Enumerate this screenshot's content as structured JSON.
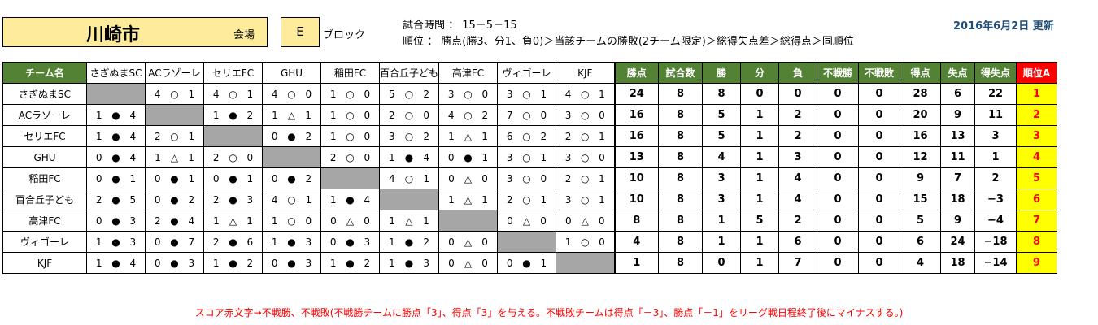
{
  "header": {
    "city": "川崎市",
    "venue_label": "会場",
    "block": "E",
    "block_label": "ブロック",
    "match_time": "試合時間 ： 15－5－15",
    "ranking_rule": "順位 ： 勝点(勝3、分1、負0)＞当該チームの勝敗(2チーム限定)＞総得失点差＞総得点＞同順位",
    "updated": "2016年6月2日 更新"
  },
  "table": {
    "team_col_header": "チーム名",
    "stat_headers": [
      "勝点",
      "試合数",
      "勝",
      "分",
      "負",
      "不戦勝",
      "不戦敗",
      "得点",
      "失点",
      "得失点",
      "順位A"
    ],
    "teams": [
      "さぎぬまSC",
      "ACラゾーレ",
      "セリエFC",
      "GHU",
      "稲田FC",
      "百合丘子ども",
      "高津FC",
      "ヴィゴーレ",
      "KJF"
    ],
    "rows": [
      {
        "scores": [
          null,
          [
            "4",
            "○",
            "1"
          ],
          [
            "4",
            "○",
            "1"
          ],
          [
            "4",
            "○",
            "0"
          ],
          [
            "1",
            "○",
            "0"
          ],
          [
            "5",
            "○",
            "2"
          ],
          [
            "3",
            "○",
            "0"
          ],
          [
            "3",
            "○",
            "1"
          ],
          [
            "4",
            "○",
            "1"
          ]
        ],
        "stats": [
          "24",
          "8",
          "8",
          "0",
          "0",
          "0",
          "0",
          "28",
          "6",
          "22",
          "1"
        ]
      },
      {
        "scores": [
          [
            "1",
            "●",
            "4"
          ],
          null,
          [
            "1",
            "●",
            "2"
          ],
          [
            "1",
            "△",
            "1"
          ],
          [
            "1",
            "○",
            "0"
          ],
          [
            "2",
            "○",
            "0"
          ],
          [
            "4",
            "○",
            "2"
          ],
          [
            "7",
            "○",
            "0"
          ],
          [
            "3",
            "○",
            "0"
          ]
        ],
        "stats": [
          "16",
          "8",
          "5",
          "1",
          "2",
          "0",
          "0",
          "20",
          "9",
          "11",
          "2"
        ]
      },
      {
        "scores": [
          [
            "1",
            "●",
            "4"
          ],
          [
            "2",
            "○",
            "1"
          ],
          null,
          [
            "0",
            "●",
            "2"
          ],
          [
            "1",
            "○",
            "0"
          ],
          [
            "3",
            "○",
            "2"
          ],
          [
            "1",
            "△",
            "1"
          ],
          [
            "6",
            "○",
            "2"
          ],
          [
            "2",
            "○",
            "1"
          ]
        ],
        "stats": [
          "16",
          "8",
          "5",
          "1",
          "2",
          "0",
          "0",
          "16",
          "13",
          "3",
          "3"
        ]
      },
      {
        "scores": [
          [
            "0",
            "●",
            "4"
          ],
          [
            "1",
            "△",
            "1"
          ],
          [
            "2",
            "○",
            "0"
          ],
          null,
          [
            "2",
            "○",
            "0"
          ],
          [
            "1",
            "●",
            "4"
          ],
          [
            "0",
            "●",
            "1"
          ],
          [
            "3",
            "○",
            "1"
          ],
          [
            "3",
            "○",
            "0"
          ]
        ],
        "stats": [
          "13",
          "8",
          "4",
          "1",
          "3",
          "0",
          "0",
          "12",
          "11",
          "1",
          "4"
        ]
      },
      {
        "scores": [
          [
            "0",
            "●",
            "1"
          ],
          [
            "0",
            "●",
            "1"
          ],
          [
            "0",
            "●",
            "1"
          ],
          [
            "0",
            "●",
            "2"
          ],
          null,
          [
            "4",
            "○",
            "1"
          ],
          [
            "0",
            "△",
            "0"
          ],
          [
            "3",
            "○",
            "0"
          ],
          [
            "2",
            "○",
            "1"
          ]
        ],
        "stats": [
          "10",
          "8",
          "3",
          "1",
          "4",
          "0",
          "0",
          "9",
          "7",
          "2",
          "5"
        ]
      },
      {
        "scores": [
          [
            "2",
            "●",
            "5"
          ],
          [
            "0",
            "●",
            "2"
          ],
          [
            "2",
            "●",
            "3"
          ],
          [
            "4",
            "○",
            "1"
          ],
          [
            "1",
            "●",
            "4"
          ],
          null,
          [
            "1",
            "△",
            "1"
          ],
          [
            "2",
            "○",
            "1"
          ],
          [
            "3",
            "○",
            "1"
          ]
        ],
        "stats": [
          "10",
          "8",
          "3",
          "1",
          "4",
          "0",
          "0",
          "15",
          "18",
          "−3",
          "6"
        ]
      },
      {
        "scores": [
          [
            "0",
            "●",
            "3"
          ],
          [
            "2",
            "●",
            "4"
          ],
          [
            "1",
            "△",
            "1"
          ],
          [
            "1",
            "○",
            "0"
          ],
          [
            "0",
            "△",
            "0"
          ],
          [
            "1",
            "△",
            "1"
          ],
          null,
          [
            "0",
            "△",
            "0"
          ],
          [
            "0",
            "△",
            "0"
          ]
        ],
        "stats": [
          "8",
          "8",
          "1",
          "5",
          "2",
          "0",
          "0",
          "5",
          "9",
          "−4",
          "7"
        ]
      },
      {
        "scores": [
          [
            "1",
            "●",
            "3"
          ],
          [
            "0",
            "●",
            "7"
          ],
          [
            "2",
            "●",
            "6"
          ],
          [
            "1",
            "●",
            "3"
          ],
          [
            "0",
            "●",
            "3"
          ],
          [
            "1",
            "●",
            "2"
          ],
          [
            "0",
            "△",
            "0"
          ],
          null,
          [
            "1",
            "○",
            "0"
          ]
        ],
        "stats": [
          "4",
          "8",
          "1",
          "1",
          "6",
          "0",
          "0",
          "6",
          "24",
          "−18",
          "8"
        ]
      },
      {
        "scores": [
          [
            "1",
            "●",
            "4"
          ],
          [
            "0",
            "●",
            "3"
          ],
          [
            "1",
            "●",
            "2"
          ],
          [
            "0",
            "●",
            "3"
          ],
          [
            "1",
            "●",
            "2"
          ],
          [
            "1",
            "●",
            "3"
          ],
          [
            "0",
            "△",
            "0"
          ],
          [
            "0",
            "●",
            "1"
          ],
          null
        ],
        "stats": [
          "1",
          "8",
          "0",
          "1",
          "7",
          "0",
          "0",
          "4",
          "18",
          "−14",
          "9"
        ]
      }
    ]
  },
  "note": "スコア赤文字→不戦勝、不戦敗(不戦勝チームに勝点「3」、得点「3」を与える。不戦敗チームは得点「－3」、勝点「－1」をリーグ戦日程終了後にマイナスする。)",
  "colors": {
    "header_green": "#548235",
    "rank_red": "#ff0000",
    "rank_yellow": "#ffff00",
    "title_fill": "#ffeb9c",
    "self_cell_gray": "#a6a6a6"
  }
}
